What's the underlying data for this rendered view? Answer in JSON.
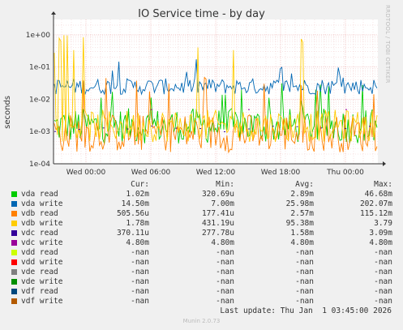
{
  "chart_data": {
    "type": "line",
    "title": "IO Service time - by day",
    "ylabel": "seconds",
    "yscale": "log",
    "ylim": [
      0.0001,
      3
    ],
    "yticks": [
      "1e-04",
      "1e-03",
      "1e-02",
      "1e-01",
      "1e+00"
    ],
    "xticks": [
      "Wed 00:00",
      "Wed 06:00",
      "Wed 12:00",
      "Wed 18:00",
      "Thu 00:00"
    ],
    "grid": true,
    "series": [
      {
        "name": "vda read",
        "color": "#00cc00",
        "typical": 0.0015,
        "spread": 0.55,
        "spikes": 0.012
      },
      {
        "name": "vda write",
        "color": "#0066b3",
        "typical": 0.025,
        "spread": 0.25,
        "spikes": 0.07
      },
      {
        "name": "vdb read",
        "color": "#ff8000",
        "typical": 0.0009,
        "spread": 0.6,
        "spikes": 0.02
      },
      {
        "name": "vdb write",
        "color": "#ffcc00",
        "typical": 0.0015,
        "spread": 0.5,
        "spikes": 0.4
      },
      {
        "name": "vdc read",
        "color": "#330099",
        "typical": 0.0012,
        "spread": 0.1,
        "spikes": 0
      },
      {
        "name": "vdc write",
        "color": "#990099",
        "typical": 0.0048,
        "spread": 0,
        "spikes": 0
      }
    ]
  },
  "legend_header": {
    "cur": "Cur:",
    "min": "Min:",
    "avg": "Avg:",
    "max": "Max:"
  },
  "legend": [
    {
      "name": "vda read",
      "color": "#00cc00",
      "cur": "1.02m",
      "min": "320.69u",
      "avg": "2.89m",
      "max": "46.68m"
    },
    {
      "name": "vda write",
      "color": "#0066b3",
      "cur": "14.50m",
      "min": "7.00m",
      "avg": "25.98m",
      "max": "202.07m"
    },
    {
      "name": "vdb read",
      "color": "#ff8000",
      "cur": "505.56u",
      "min": "177.41u",
      "avg": "2.57m",
      "max": "115.12m"
    },
    {
      "name": "vdb write",
      "color": "#ffcc00",
      "cur": "1.78m",
      "min": "431.19u",
      "avg": "95.38m",
      "max": "3.79"
    },
    {
      "name": "vdc read",
      "color": "#330099",
      "cur": "370.11u",
      "min": "277.78u",
      "avg": "1.58m",
      "max": "3.09m"
    },
    {
      "name": "vdc write",
      "color": "#990099",
      "cur": "4.80m",
      "min": "4.80m",
      "avg": "4.80m",
      "max": "4.80m"
    },
    {
      "name": "vdd read",
      "color": "#ccff00",
      "cur": "-nan",
      "min": "-nan",
      "avg": "-nan",
      "max": "-nan"
    },
    {
      "name": "vdd write",
      "color": "#ff0000",
      "cur": "-nan",
      "min": "-nan",
      "avg": "-nan",
      "max": "-nan"
    },
    {
      "name": "vde read",
      "color": "#808080",
      "cur": "-nan",
      "min": "-nan",
      "avg": "-nan",
      "max": "-nan"
    },
    {
      "name": "vde write",
      "color": "#008f00",
      "cur": "-nan",
      "min": "-nan",
      "avg": "-nan",
      "max": "-nan"
    },
    {
      "name": "vdf read",
      "color": "#00487d",
      "cur": "-nan",
      "min": "-nan",
      "avg": "-nan",
      "max": "-nan"
    },
    {
      "name": "vdf write",
      "color": "#b35a00",
      "cur": "-nan",
      "min": "-nan",
      "avg": "-nan",
      "max": "-nan"
    }
  ],
  "last_update": "Last update: Thu Jan  1 03:45:00 2026",
  "side_label": "RRDTOOL / TOBI OETIKER",
  "generator": "Munin 2.0.73"
}
